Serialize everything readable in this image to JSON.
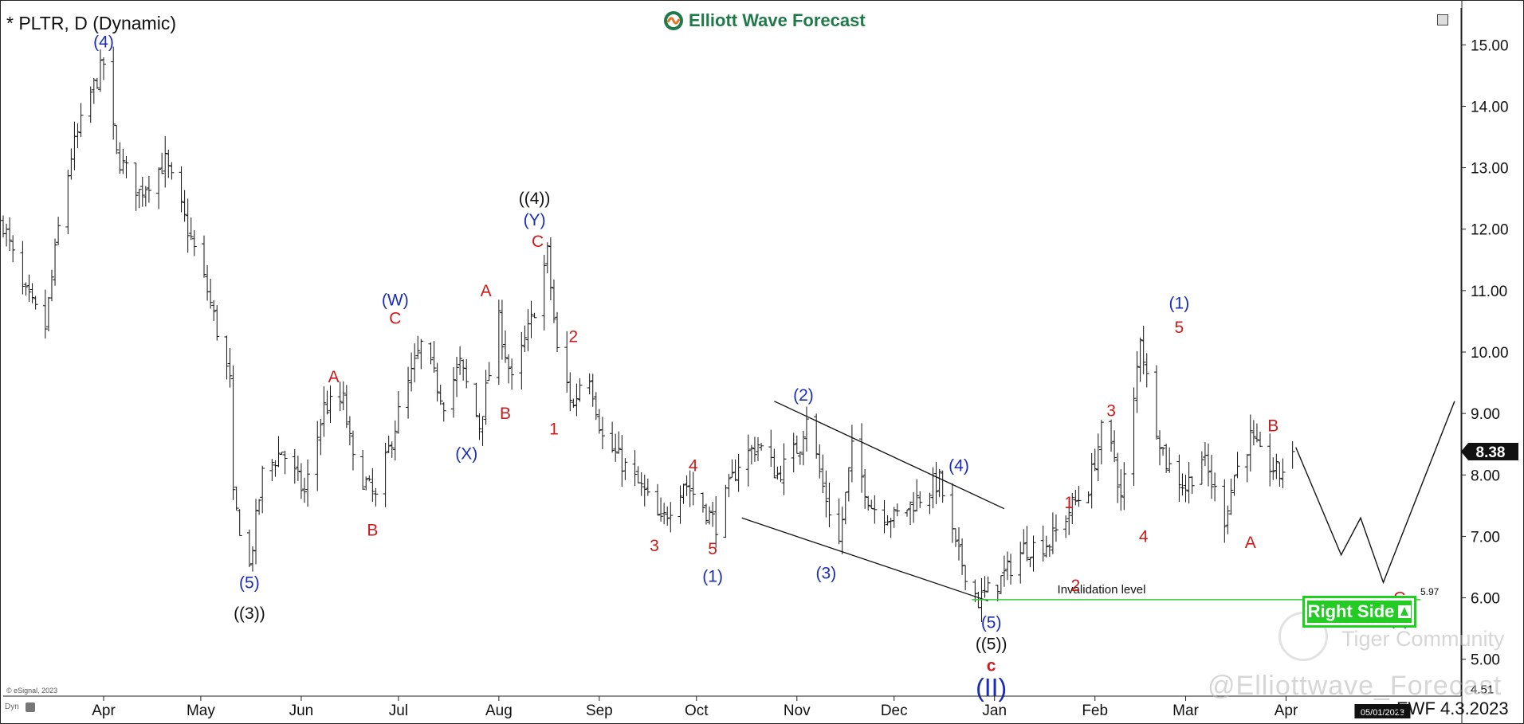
{
  "header": {
    "symbol_title": "* PLTR, D (Dynamic)",
    "brand": "Elliott Wave Forecast"
  },
  "footer": {
    "esignal_credit": "© eSignal, 2023",
    "dyn_label": "Dyn",
    "ewf_date": "EWF 4.3.2023",
    "cursor_date": "05/01/2023"
  },
  "watermark": {
    "handle": "@Elliottwave_Forecast",
    "community": "Tiger Community"
  },
  "badge": {
    "label": "Right Side"
  },
  "colors": {
    "bar": "#111111",
    "red": "#cc1a1a",
    "blue": "#1a2db8",
    "black": "#111111",
    "invalidation": "#33cc33",
    "badge": "#22cc22",
    "brand": "#1f7a4a"
  },
  "chart_data": {
    "type": "ohlc-bar",
    "symbol": "PLTR",
    "interval": "D",
    "ylim": [
      4.4,
      15.6
    ],
    "y_ticks": [
      "15.00",
      "14.00",
      "13.00",
      "12.00",
      "11.00",
      "10.00",
      "9.00",
      "8.00",
      "7.00",
      "6.00",
      "5.00"
    ],
    "y_tick_values": [
      15,
      14,
      13,
      12,
      11,
      10,
      9,
      8,
      7,
      6,
      5
    ],
    "last_price": {
      "value": 8.38,
      "label": "8.38"
    },
    "bottom_tick_label": "4.51",
    "x_start": "2022-03-01",
    "x_end": "2023-05-25",
    "x_ticks": [
      {
        "date": "2022-04-01",
        "label": "Apr"
      },
      {
        "date": "2022-05-01",
        "label": "May"
      },
      {
        "date": "2022-06-01",
        "label": "Jun"
      },
      {
        "date": "2022-07-01",
        "label": "Jul"
      },
      {
        "date": "2022-08-01",
        "label": "Aug"
      },
      {
        "date": "2022-09-01",
        "label": "Sep"
      },
      {
        "date": "2022-10-01",
        "label": "Oct"
      },
      {
        "date": "2022-11-01",
        "label": "Nov"
      },
      {
        "date": "2022-12-01",
        "label": "Dec"
      },
      {
        "date": "2023-01-01",
        "label": "Jan"
      },
      {
        "date": "2023-02-01",
        "label": "Feb"
      },
      {
        "date": "2023-03-01",
        "label": "Mar"
      },
      {
        "date": "2023-04-01",
        "label": "Apr"
      }
    ],
    "price_path": [
      [
        "2022-03-01",
        12.1
      ],
      [
        "2022-03-07",
        11.0
      ],
      [
        "2022-03-14",
        10.4
      ],
      [
        "2022-03-18",
        12.0
      ],
      [
        "2022-03-22",
        13.2
      ],
      [
        "2022-03-28",
        14.2
      ],
      [
        "2022-04-01",
        14.7
      ],
      [
        "2022-04-05",
        13.2
      ],
      [
        "2022-04-12",
        12.6
      ],
      [
        "2022-04-20",
        13.1
      ],
      [
        "2022-04-27",
        12.0
      ],
      [
        "2022-05-03",
        11.0
      ],
      [
        "2022-05-10",
        9.5
      ],
      [
        "2022-05-11",
        7.6
      ],
      [
        "2022-05-16",
        6.5
      ],
      [
        "2022-05-20",
        8.0
      ],
      [
        "2022-05-26",
        8.4
      ],
      [
        "2022-06-02",
        7.7
      ],
      [
        "2022-06-08",
        9.1
      ],
      [
        "2022-06-14",
        9.2
      ],
      [
        "2022-06-17",
        8.2
      ],
      [
        "2022-06-24",
        7.6
      ],
      [
        "2022-07-01",
        9.0
      ],
      [
        "2022-07-08",
        10.1
      ],
      [
        "2022-07-15",
        9.2
      ],
      [
        "2022-07-20",
        9.8
      ],
      [
        "2022-07-26",
        8.8
      ],
      [
        "2022-08-01",
        10.5
      ],
      [
        "2022-08-05",
        9.5
      ],
      [
        "2022-08-11",
        10.5
      ],
      [
        "2022-08-16",
        11.6
      ],
      [
        "2022-08-19",
        10.0
      ],
      [
        "2022-08-24",
        9.1
      ],
      [
        "2022-08-28",
        9.9
      ],
      [
        "2022-09-02",
        8.6
      ],
      [
        "2022-09-08",
        8.2
      ],
      [
        "2022-09-15",
        7.7
      ],
      [
        "2022-09-20",
        7.2
      ],
      [
        "2022-09-27",
        7.9
      ],
      [
        "2022-10-03",
        7.5
      ],
      [
        "2022-10-07",
        7.2
      ],
      [
        "2022-10-14",
        8.2
      ],
      [
        "2022-10-20",
        8.5
      ],
      [
        "2022-10-26",
        8.0
      ],
      [
        "2022-11-02",
        8.5
      ],
      [
        "2022-11-04",
        9.0
      ],
      [
        "2022-11-09",
        7.8
      ],
      [
        "2022-11-14",
        6.9
      ],
      [
        "2022-11-18",
        8.4
      ],
      [
        "2022-11-24",
        7.5
      ],
      [
        "2022-12-01",
        7.3
      ],
      [
        "2022-12-08",
        7.6
      ],
      [
        "2022-12-15",
        7.9
      ],
      [
        "2022-12-20",
        6.8
      ],
      [
        "2022-12-27",
        5.95
      ],
      [
        "2023-01-03",
        6.3
      ],
      [
        "2023-01-10",
        6.8
      ],
      [
        "2023-01-18",
        6.9
      ],
      [
        "2023-01-25",
        7.5
      ],
      [
        "2023-01-30",
        7.8
      ],
      [
        "2023-02-03",
        8.7
      ],
      [
        "2023-02-07",
        8.3
      ],
      [
        "2023-02-09",
        7.6
      ],
      [
        "2023-02-12",
        8.6
      ],
      [
        "2023-02-15",
        10.3
      ],
      [
        "2023-02-18",
        9.2
      ],
      [
        "2023-02-23",
        8.2
      ],
      [
        "2023-03-01",
        7.8
      ],
      [
        "2023-03-06",
        8.3
      ],
      [
        "2023-03-13",
        7.3
      ],
      [
        "2023-03-16",
        8.0
      ],
      [
        "2023-03-21",
        8.6
      ],
      [
        "2023-03-24",
        8.3
      ],
      [
        "2023-03-30",
        8.0
      ],
      [
        "2023-04-03",
        8.38
      ]
    ],
    "projection": [
      [
        "2023-04-04",
        8.45
      ],
      [
        "2023-04-18",
        6.7
      ],
      [
        "2023-04-24",
        7.3
      ],
      [
        "2023-05-01",
        6.25
      ],
      [
        "2023-05-23",
        9.2
      ]
    ],
    "channel_lines": [
      [
        [
          "2022-10-15",
          7.3
        ],
        [
          "2022-12-30",
          5.95
        ]
      ],
      [
        [
          "2022-10-25",
          9.2
        ],
        [
          "2023-01-04",
          7.45
        ]
      ]
    ],
    "invalidation": {
      "value": 5.97,
      "label": "Invalidation level",
      "value_label": "5.97",
      "from": "2022-12-25",
      "to": "2023-06-05"
    },
    "wave_labels": [
      {
        "text": "(4)",
        "date": "2022-04-01",
        "y": 15.05,
        "color": "blue"
      },
      {
        "text": "(5)",
        "date": "2022-05-16",
        "y": 6.25,
        "color": "blue"
      },
      {
        "text": "((3))",
        "date": "2022-05-16",
        "y": 5.75,
        "color": "black"
      },
      {
        "text": "A",
        "date": "2022-06-11",
        "y": 9.6,
        "color": "red"
      },
      {
        "text": "B",
        "date": "2022-06-23",
        "y": 7.1,
        "color": "red"
      },
      {
        "text": "(W)",
        "date": "2022-06-30",
        "y": 10.85,
        "color": "blue"
      },
      {
        "text": "C",
        "date": "2022-06-30",
        "y": 10.55,
        "color": "red"
      },
      {
        "text": "(X)",
        "date": "2022-07-22",
        "y": 8.35,
        "color": "blue"
      },
      {
        "text": "A",
        "date": "2022-07-28",
        "y": 11.0,
        "color": "red"
      },
      {
        "text": "B",
        "date": "2022-08-03",
        "y": 9.0,
        "color": "red"
      },
      {
        "text": "((4))",
        "date": "2022-08-12",
        "y": 12.5,
        "color": "black"
      },
      {
        "text": "(Y)",
        "date": "2022-08-12",
        "y": 12.15,
        "color": "blue"
      },
      {
        "text": "C",
        "date": "2022-08-13",
        "y": 11.8,
        "color": "red"
      },
      {
        "text": "2",
        "date": "2022-08-24",
        "y": 10.25,
        "color": "red"
      },
      {
        "text": "1",
        "date": "2022-08-18",
        "y": 8.75,
        "color": "red"
      },
      {
        "text": "3",
        "date": "2022-09-18",
        "y": 6.85,
        "color": "red"
      },
      {
        "text": "4",
        "date": "2022-09-30",
        "y": 8.15,
        "color": "red"
      },
      {
        "text": "5",
        "date": "2022-10-06",
        "y": 6.8,
        "color": "red"
      },
      {
        "text": "(1)",
        "date": "2022-10-06",
        "y": 6.35,
        "color": "blue"
      },
      {
        "text": "(2)",
        "date": "2022-11-03",
        "y": 9.3,
        "color": "blue"
      },
      {
        "text": "(3)",
        "date": "2022-11-10",
        "y": 6.4,
        "color": "blue"
      },
      {
        "text": "(4)",
        "date": "2022-12-21",
        "y": 8.15,
        "color": "blue"
      },
      {
        "text": "(5)",
        "date": "2022-12-31",
        "y": 5.6,
        "color": "blue"
      },
      {
        "text": "((5))",
        "date": "2022-12-31",
        "y": 5.25,
        "color": "black"
      },
      {
        "text": "c",
        "date": "2022-12-31",
        "y": 4.9,
        "color": "red"
      },
      {
        "text": "(II)",
        "date": "2022-12-31",
        "y": 4.55,
        "color": "blue"
      },
      {
        "text": "1",
        "date": "2023-01-24",
        "y": 7.55,
        "color": "red"
      },
      {
        "text": "2",
        "date": "2023-01-26",
        "y": 6.2,
        "color": "red"
      },
      {
        "text": "3",
        "date": "2023-02-06",
        "y": 9.05,
        "color": "red"
      },
      {
        "text": "4",
        "date": "2023-02-16",
        "y": 7.0,
        "color": "red"
      },
      {
        "text": "(1)",
        "date": "2023-02-27",
        "y": 10.8,
        "color": "blue"
      },
      {
        "text": "5",
        "date": "2023-02-27",
        "y": 10.4,
        "color": "red"
      },
      {
        "text": "A",
        "date": "2023-03-21",
        "y": 6.9,
        "color": "red"
      },
      {
        "text": "B",
        "date": "2023-03-28",
        "y": 8.8,
        "color": "red"
      },
      {
        "text": "C",
        "date": "2023-05-06",
        "y": 6.0,
        "color": "red"
      },
      {
        "text": "(2)",
        "date": "2023-05-06",
        "y": 5.65,
        "color": "blue"
      }
    ]
  }
}
